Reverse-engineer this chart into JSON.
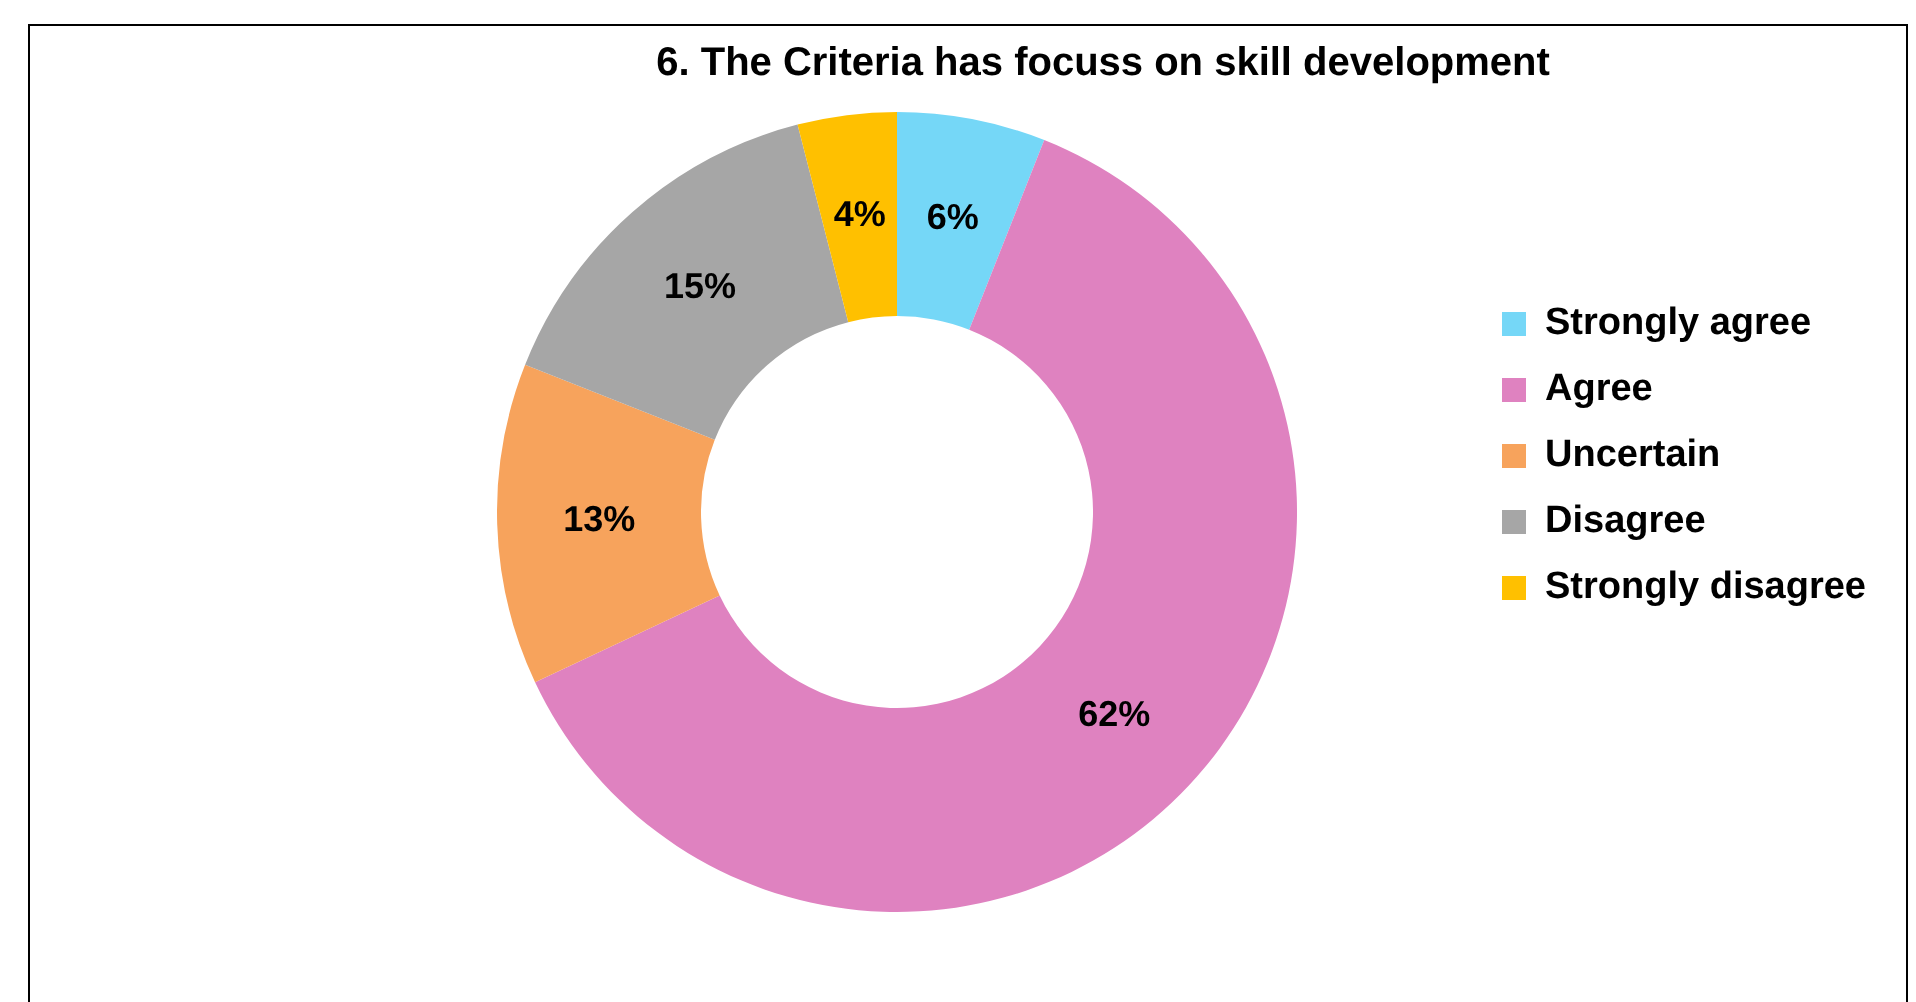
{
  "chart_data": {
    "type": "donut",
    "title": "6. The Criteria has focuss on skill development",
    "categories": [
      "Strongly agree",
      "Agree",
      "Uncertain",
      "Disagree",
      "Strongly disagree"
    ],
    "values": [
      6,
      62,
      13,
      15,
      4
    ],
    "colors": [
      "#75d7f7",
      "#df82c0",
      "#f7a35c",
      "#a6a6a6",
      "#ffc000"
    ],
    "value_labels": [
      "6%",
      "62%",
      "13%",
      "15%",
      "4%"
    ],
    "legend": "right"
  }
}
